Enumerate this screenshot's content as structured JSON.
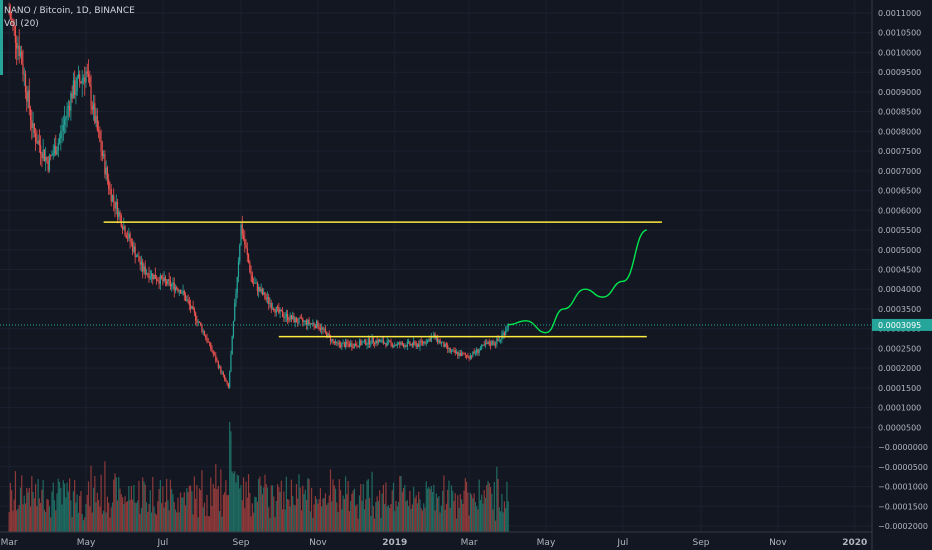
{
  "header": {
    "symbol": "NANO / Bitcoin, 1D, BINANCE",
    "volume_indicator": "Vol (20)"
  },
  "colors": {
    "background": "#131722",
    "up_candle": "#26a69a",
    "down_candle": "#ef5350",
    "volume_up": "#1f6b62",
    "volume_down": "#8e3a3a",
    "horizontal_lines": "#ffeb3b",
    "projection": "#00e64d",
    "price_line": "#26a69a"
  },
  "chart_data": {
    "type": "candlestick",
    "title": "NANO / Bitcoin, 1D, BINANCE",
    "x_tick_labels": [
      "Mar",
      "May",
      "Jul",
      "Sep",
      "Nov",
      "2019",
      "Mar",
      "May",
      "Jul",
      "Sep",
      "Nov",
      "2020"
    ],
    "y_tick_labels": [
      "0.0011000",
      "0.0010500",
      "0.0010000",
      "0.0009500",
      "0.0009000",
      "0.0008500",
      "0.0008000",
      "0.0007500",
      "0.0007000",
      "0.0006500",
      "0.0006000",
      "0.0005500",
      "0.0005000",
      "0.0004500",
      "0.0004000",
      "0.0003500",
      "0.0003000",
      "0.0002500",
      "0.0002000",
      "0.0001500",
      "0.0001000",
      "0.0000500",
      "−0.0000000",
      "−0.0000500",
      "−0.0001000",
      "−0.0001500",
      "−0.0002000"
    ],
    "ylim": [
      -0.0002,
      0.0011
    ],
    "current_price_label": "0.0003095",
    "current_price": 0.0003095,
    "price_path": [
      [
        "2018-03-01",
        0.0011
      ],
      [
        "2018-03-10",
        0.001
      ],
      [
        "2018-03-20",
        0.0008
      ],
      [
        "2018-04-01",
        0.00072
      ],
      [
        "2018-04-10",
        0.00078
      ],
      [
        "2018-04-20",
        0.0009
      ],
      [
        "2018-05-01",
        0.00095
      ],
      [
        "2018-05-10",
        0.0008
      ],
      [
        "2018-05-20",
        0.00065
      ],
      [
        "2018-06-01",
        0.00055
      ],
      [
        "2018-06-15",
        0.00045
      ],
      [
        "2018-07-01",
        0.00042
      ],
      [
        "2018-07-15",
        0.0004
      ],
      [
        "2018-08-01",
        0.0003
      ],
      [
        "2018-08-15",
        0.0002
      ],
      [
        "2018-08-22",
        0.00015
      ],
      [
        "2018-09-01",
        0.00056
      ],
      [
        "2018-09-10",
        0.00042
      ],
      [
        "2018-09-20",
        0.00038
      ],
      [
        "2018-10-01",
        0.00034
      ],
      [
        "2018-10-15",
        0.00032
      ],
      [
        "2018-11-01",
        0.00031
      ],
      [
        "2018-11-15",
        0.00026
      ],
      [
        "2018-12-01",
        0.00026
      ],
      [
        "2018-12-15",
        0.00027
      ],
      [
        "2019-01-01",
        0.00026
      ],
      [
        "2019-01-20",
        0.00026
      ],
      [
        "2019-02-01",
        0.00028
      ],
      [
        "2019-02-15",
        0.00024
      ],
      [
        "2019-03-01",
        0.00023
      ],
      [
        "2019-03-15",
        0.00026
      ],
      [
        "2019-03-25",
        0.00027
      ],
      [
        "2019-04-01",
        0.00031
      ]
    ],
    "annotations": {
      "resistance_line": {
        "value": 0.00057,
        "from": "2018-05-15",
        "to": "2019-08-01"
      },
      "support_line": {
        "value": 0.00028,
        "from": "2018-10-01",
        "to": "2019-07-20"
      },
      "projection_path": [
        [
          "2019-04-01",
          0.00031
        ],
        [
          "2019-04-15",
          0.00032
        ],
        [
          "2019-05-01",
          0.00029
        ],
        [
          "2019-05-15",
          0.00035
        ],
        [
          "2019-06-01",
          0.0004
        ],
        [
          "2019-06-15",
          0.00038
        ],
        [
          "2019-07-01",
          0.00042
        ],
        [
          "2019-07-20",
          0.00055
        ]
      ]
    }
  }
}
